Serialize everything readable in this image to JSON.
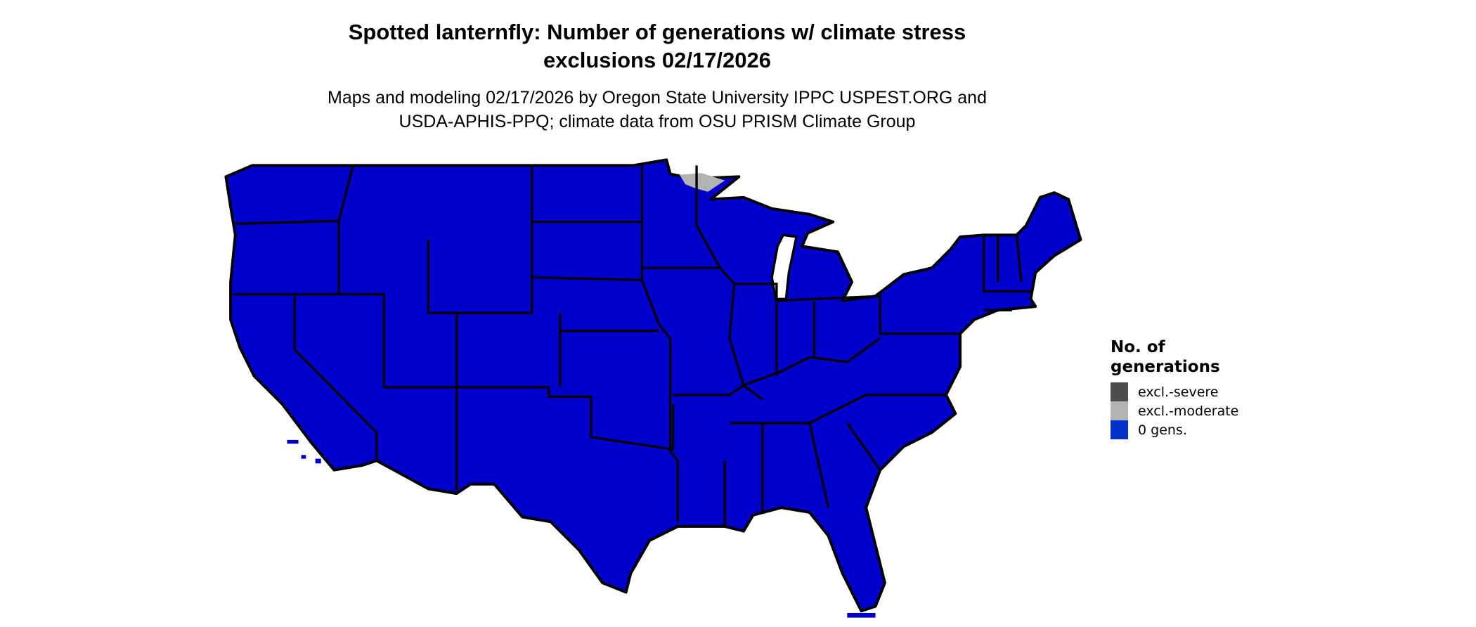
{
  "title": {
    "line1": "Spotted lanternfly: Number of generations w/ climate stress",
    "line2": "exclusions 02/17/2026"
  },
  "subtitle": {
    "line1": "Maps and modeling 02/17/2026 by Oregon State University IPPC USPEST.ORG and",
    "line2": "USDA-APHIS-PPQ; climate data from OSU PRISM Climate Group"
  },
  "map": {
    "region": "Contiguous United States",
    "fill_color": "#0000CD",
    "border_color": "#000000",
    "excluded_moderate_area": "Northeastern Minnesota (Lake Superior shore)"
  },
  "legend": {
    "title_line1": "No. of",
    "title_line2": "generations",
    "items": [
      {
        "label": "excl.-severe",
        "color": "#4D4D4D"
      },
      {
        "label": "excl.-moderate",
        "color": "#B3B3B3"
      },
      {
        "label": "0 gens.",
        "color": "#0033CC"
      }
    ]
  }
}
